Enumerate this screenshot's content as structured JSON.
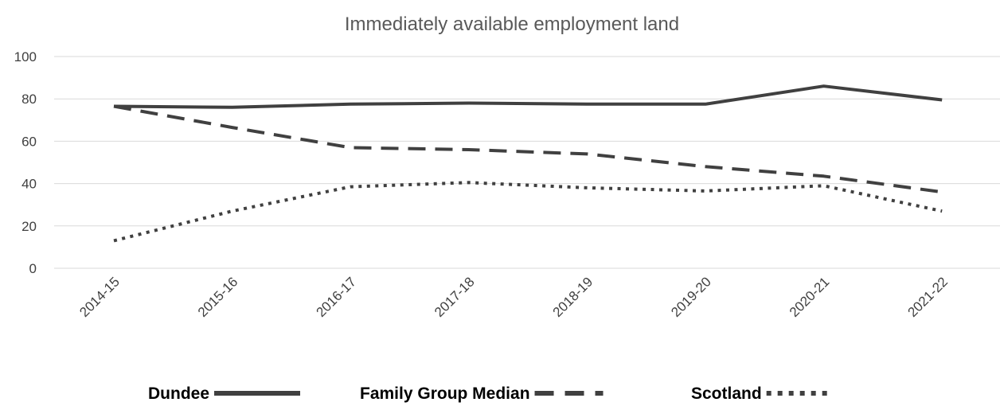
{
  "chart_data": {
    "type": "line",
    "title": "Immediately available employment land",
    "xlabel": "",
    "ylabel": "",
    "categories": [
      "2014-15",
      "2015-16",
      "2016-17",
      "2017-18",
      "2018-19",
      "2019-20",
      "2020-21",
      "2021-22"
    ],
    "ylim": [
      0,
      100
    ],
    "yticks": [
      0,
      20,
      40,
      60,
      80,
      100
    ],
    "grid": true,
    "legend_position": "bottom",
    "series": [
      {
        "name": "Dundee",
        "style": "solid",
        "color": "#404040",
        "values": [
          76.5,
          76,
          77.5,
          78,
          77.5,
          77.5,
          86,
          79.5
        ]
      },
      {
        "name": "Family Group Median",
        "style": "dashed",
        "color": "#404040",
        "values": [
          76.5,
          66.5,
          57,
          56,
          54,
          48,
          43.5,
          36
        ]
      },
      {
        "name": "Scotland",
        "style": "dotted",
        "color": "#404040",
        "values": [
          13,
          27,
          38.5,
          40.5,
          38,
          36.5,
          39,
          27
        ]
      }
    ]
  }
}
